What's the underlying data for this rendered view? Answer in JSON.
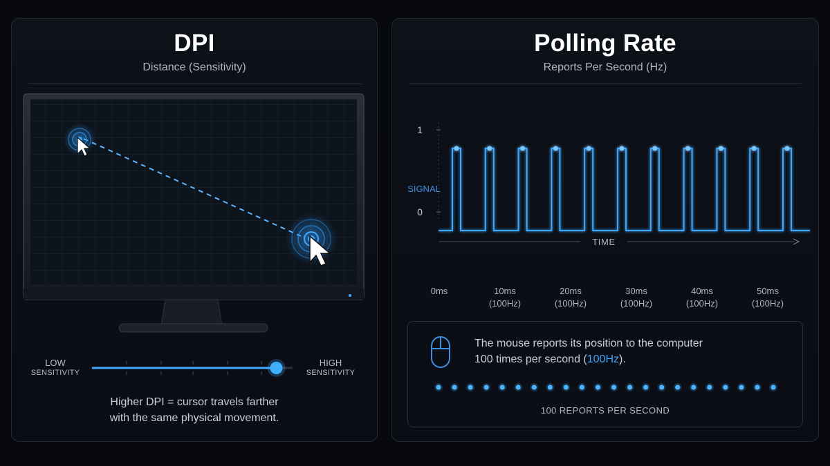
{
  "dpi": {
    "title": "DPI",
    "subtitle": "Distance (Sensitivity)",
    "slider": {
      "low_line1": "LOW",
      "low_line2": "SENSITIVITY",
      "high_line1": "HIGH",
      "high_line2": "SENSITIVITY",
      "level": 0.95
    },
    "caption_line1": "Higher DPI = cursor travels farther",
    "caption_line2": "with the same physical movement."
  },
  "polling": {
    "title": "Polling Rate",
    "subtitle": "Reports Per Second (Hz)",
    "chart": {
      "y_label": "SIGNAL",
      "y_high": "1",
      "y_low": "0",
      "x_label": "TIME",
      "ticks": [
        {
          "time": "0ms",
          "rate": ""
        },
        {
          "time": "10ms",
          "rate": "(100Hz)"
        },
        {
          "time": "20ms",
          "rate": "(100Hz)"
        },
        {
          "time": "30ms",
          "rate": "(100Hz)"
        },
        {
          "time": "40ms",
          "rate": "(100Hz)"
        },
        {
          "time": "50ms",
          "rate": "(100Hz)"
        }
      ],
      "pulse_count": 11
    },
    "info": {
      "text_before": "The mouse reports its position to the computer",
      "text_mid": "100 times per second (",
      "text_hz": "100Hz",
      "text_after": ").",
      "dot_count": 22,
      "reports_label": "100 REPORTS PER SECOND"
    },
    "accent": "#3fa8ff"
  }
}
